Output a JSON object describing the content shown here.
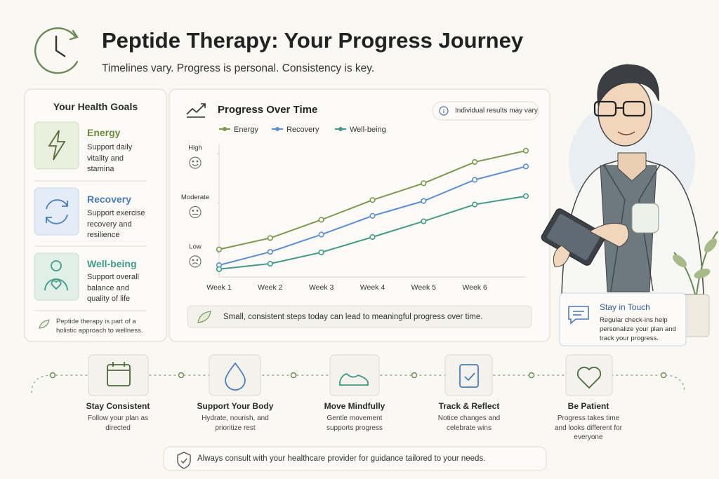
{
  "header": {
    "title": "Peptide Therapy: Your Progress Journey",
    "subtitle": "Timelines vary. Progress is personal. Consistency is key."
  },
  "goals": {
    "title": "Your Health Goals",
    "items": [
      {
        "name": "Energy",
        "text": "Support daily vitality and stamina"
      },
      {
        "name": "Recovery",
        "text": "Support exercise recovery and resilience"
      },
      {
        "name": "Well-being",
        "text": "Support overall balance and quality of life"
      }
    ],
    "note": "Peptide therapy is part of a holistic approach to wellness."
  },
  "chart_data": {
    "type": "line",
    "title": "Progress Over Time",
    "disclaimer": "Individual results may vary",
    "categories": [
      "Week 1",
      "Week 2",
      "Week 3",
      "Week 4",
      "Week 5",
      "Week 6",
      null
    ],
    "series": [
      {
        "name": "Energy",
        "color": "#7a9a4a",
        "values": [
          1.06,
          1.29,
          1.66,
          2.06,
          2.4,
          2.83,
          3.06
        ]
      },
      {
        "name": "Recovery",
        "color": "#5b8ed6",
        "values": [
          0.74,
          1.01,
          1.36,
          1.74,
          2.04,
          2.47,
          2.74
        ]
      },
      {
        "name": "Well-being",
        "color": "#3f9a88",
        "values": [
          0.66,
          0.77,
          1.0,
          1.31,
          1.63,
          1.97,
          2.14
        ]
      }
    ],
    "ylim": [
      0.5,
      3.2
    ],
    "yticks": [
      {
        "value": 1,
        "label": "Low"
      },
      {
        "value": 2,
        "label": "Moderate"
      },
      {
        "value": 3,
        "label": "High"
      }
    ],
    "grid": false,
    "message": "Small, consistent steps today can lead to meaningful progress over time."
  },
  "contact": {
    "title": "Stay in Touch",
    "text": "Regular check-ins help personalize your plan and track your progress."
  },
  "steps": [
    {
      "title": "Stay Consistent",
      "text": "Follow your plan as directed"
    },
    {
      "title": "Support Your Body",
      "text": "Hydrate, nourish, and prioritize rest"
    },
    {
      "title": "Move Mindfully",
      "text": "Gentle movement supports progress"
    },
    {
      "title": "Track & Reflect",
      "text": "Notice changes and celebrate wins"
    },
    {
      "title": "Be Patient",
      "text": "Progress takes time and looks different for everyone"
    }
  ],
  "footer": "Always consult with your healthcare provider for guidance tailored to your needs."
}
